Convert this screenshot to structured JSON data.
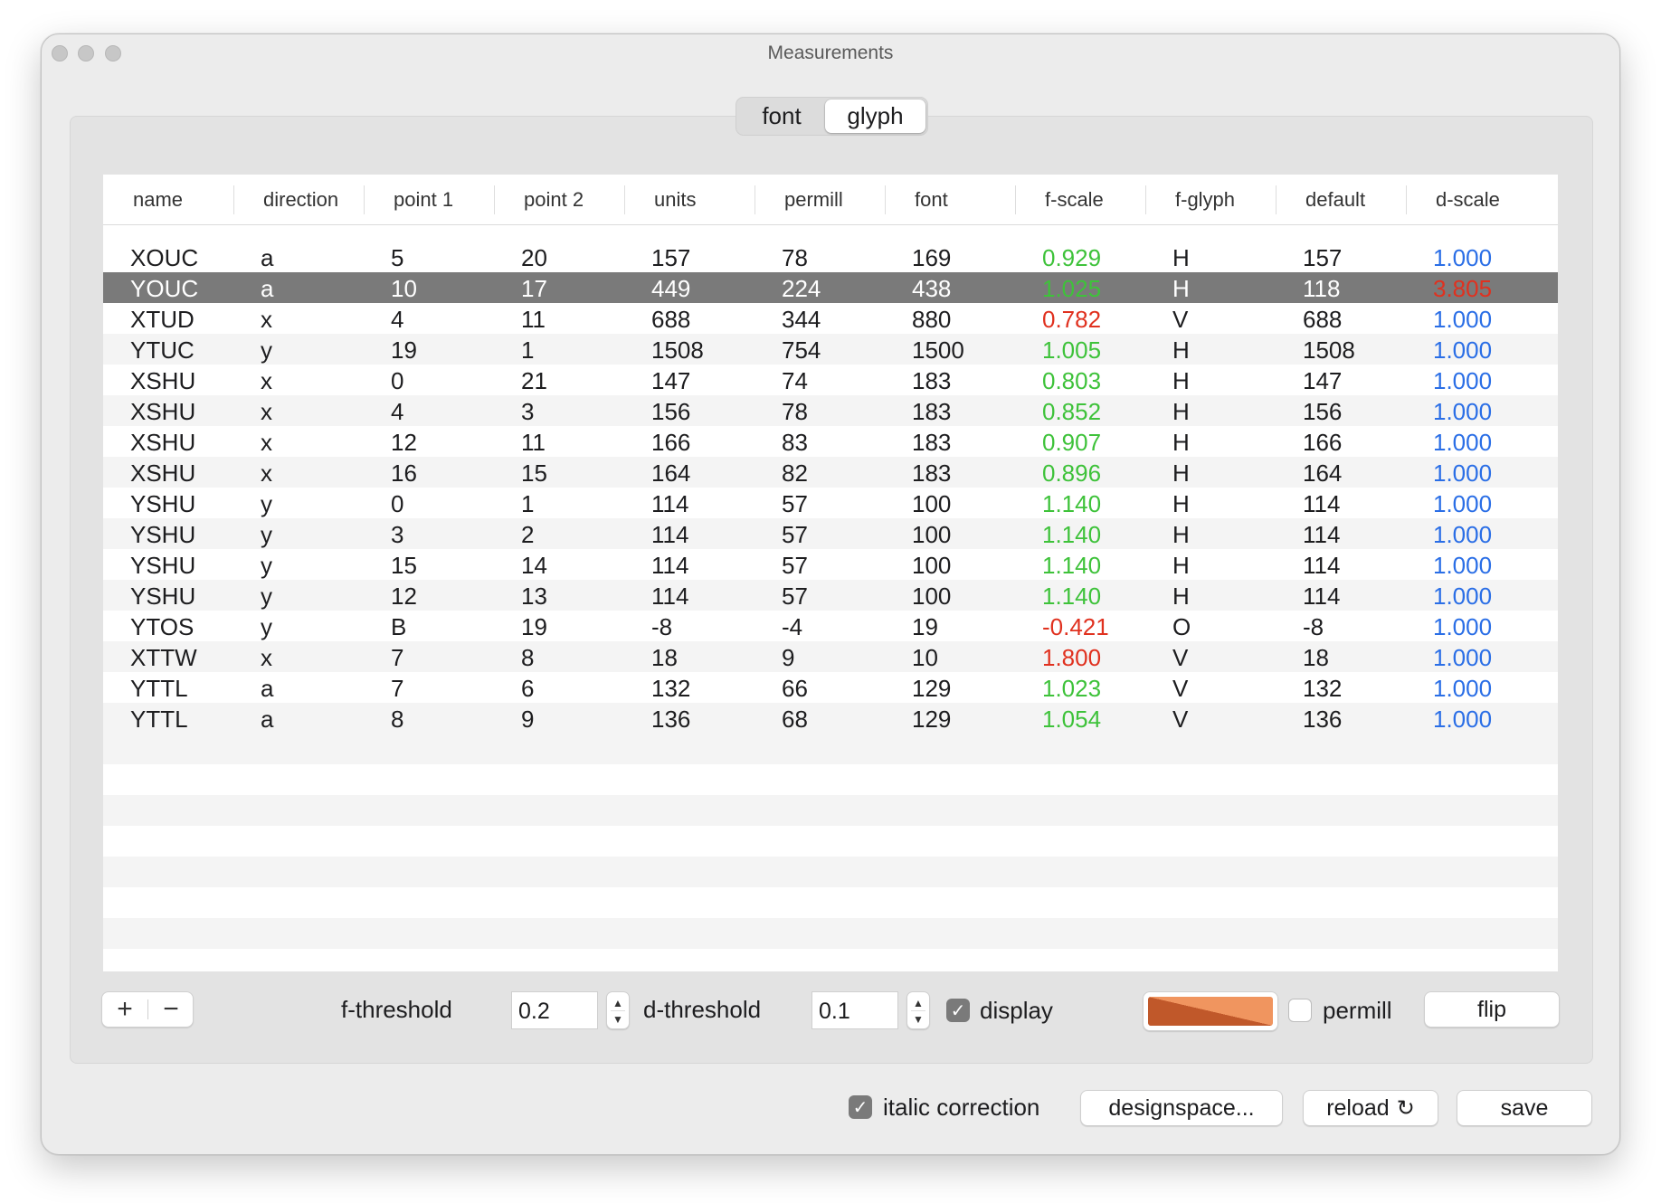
{
  "window": {
    "title": "Measurements"
  },
  "tabs": [
    {
      "label": "font",
      "selected": false
    },
    {
      "label": "glyph",
      "selected": true
    }
  ],
  "table": {
    "columns": [
      "name",
      "direction",
      "point 1",
      "point 2",
      "units",
      "permill",
      "font",
      "f-scale",
      "f-glyph",
      "default",
      "d-scale"
    ],
    "selected_row": 1,
    "rows": [
      [
        "XOUC",
        "a",
        "5",
        "20",
        "157",
        "78",
        "169",
        "0.929",
        "H",
        "157",
        "1.000"
      ],
      [
        "YOUC",
        "a",
        "10",
        "17",
        "449",
        "224",
        "438",
        "1.025",
        "H",
        "118",
        "3.805"
      ],
      [
        "XTUD",
        "x",
        "4",
        "11",
        "688",
        "344",
        "880",
        "0.782",
        "V",
        "688",
        "1.000"
      ],
      [
        "YTUC",
        "y",
        "19",
        "1",
        "1508",
        "754",
        "1500",
        "1.005",
        "H",
        "1508",
        "1.000"
      ],
      [
        "XSHU",
        "x",
        "0",
        "21",
        "147",
        "74",
        "183",
        "0.803",
        "H",
        "147",
        "1.000"
      ],
      [
        "XSHU",
        "x",
        "4",
        "3",
        "156",
        "78",
        "183",
        "0.852",
        "H",
        "156",
        "1.000"
      ],
      [
        "XSHU",
        "x",
        "12",
        "11",
        "166",
        "83",
        "183",
        "0.907",
        "H",
        "166",
        "1.000"
      ],
      [
        "XSHU",
        "x",
        "16",
        "15",
        "164",
        "82",
        "183",
        "0.896",
        "H",
        "164",
        "1.000"
      ],
      [
        "YSHU",
        "y",
        "0",
        "1",
        "114",
        "57",
        "100",
        "1.140",
        "H",
        "114",
        "1.000"
      ],
      [
        "YSHU",
        "y",
        "3",
        "2",
        "114",
        "57",
        "100",
        "1.140",
        "H",
        "114",
        "1.000"
      ],
      [
        "YSHU",
        "y",
        "15",
        "14",
        "114",
        "57",
        "100",
        "1.140",
        "H",
        "114",
        "1.000"
      ],
      [
        "YSHU",
        "y",
        "12",
        "13",
        "114",
        "57",
        "100",
        "1.140",
        "H",
        "114",
        "1.000"
      ],
      [
        "YTOS",
        "y",
        "B",
        "19",
        "-8",
        "-4",
        "19",
        "-0.421",
        "O",
        "-8",
        "1.000"
      ],
      [
        "XTTW",
        "x",
        "7",
        "8",
        "18",
        "9",
        "10",
        "1.800",
        "V",
        "18",
        "1.000"
      ],
      [
        "YTTL",
        "a",
        "7",
        "6",
        "132",
        "66",
        "129",
        "1.023",
        "V",
        "132",
        "1.000"
      ],
      [
        "YTTL",
        "a",
        "8",
        "9",
        "136",
        "68",
        "129",
        "1.054",
        "V",
        "136",
        "1.000"
      ]
    ],
    "fscale_colors": [
      "green",
      "green",
      "red",
      "green",
      "green",
      "green",
      "green",
      "green",
      "green",
      "green",
      "green",
      "green",
      "red",
      "red",
      "green",
      "green"
    ],
    "dscale_colors": [
      "blue",
      "red",
      "blue",
      "blue",
      "blue",
      "blue",
      "blue",
      "blue",
      "blue",
      "blue",
      "blue",
      "blue",
      "blue",
      "blue",
      "blue",
      "blue"
    ]
  },
  "controls": {
    "add_label": "+",
    "remove_label": "−",
    "f_threshold_label": "f-threshold",
    "f_threshold_value": "0.2",
    "d_threshold_label": "d-threshold",
    "d_threshold_value": "0.1",
    "display_label": "display",
    "display_checked": true,
    "color_well_colors": [
      "#c0582a",
      "#f0955f"
    ],
    "permill_label": "permill",
    "permill_checked": false,
    "flip_label": "flip"
  },
  "footer": {
    "italic_correction_label": "italic correction",
    "italic_correction_checked": true,
    "designspace_label": "designspace...",
    "reload_label": "reload",
    "save_label": "save"
  },
  "colors": {
    "green": "#3ec23a",
    "red": "#e0311f",
    "blue": "#2a6ee6",
    "selection": "#7a7a7a"
  }
}
